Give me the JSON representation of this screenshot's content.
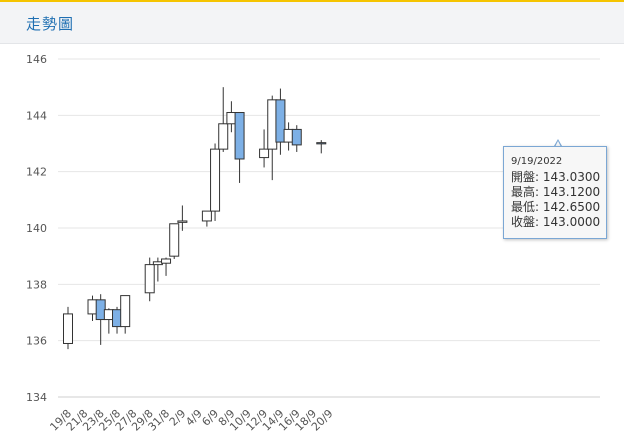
{
  "header": {
    "title": "走勢圖"
  },
  "colors": {
    "up": "#ffffff",
    "down": "#7db0e6",
    "outline": "#333333",
    "grid": "#e6e6e6",
    "accent": "#f5c400"
  },
  "chart_data": {
    "type": "candlestick",
    "ylim": [
      134,
      146
    ],
    "yticks": [
      134,
      136,
      138,
      140,
      142,
      144,
      146
    ],
    "grid": true,
    "x_tick_labels": [
      "19/8",
      "21/8",
      "23/8",
      "25/8",
      "27/8",
      "29/8",
      "31/8",
      "2/9",
      "4/9",
      "6/9",
      "8/9",
      "10/9",
      "12/9",
      "14/9",
      "16/9",
      "18/9",
      "20/9"
    ],
    "candles": [
      {
        "date": "19/8",
        "open": 135.9,
        "high": 137.2,
        "low": 135.7,
        "close": 136.95
      },
      {
        "date": "22/8",
        "open": 136.95,
        "high": 137.6,
        "low": 136.7,
        "close": 137.45
      },
      {
        "date": "23/8",
        "open": 137.45,
        "high": 137.65,
        "low": 135.85,
        "close": 136.75
      },
      {
        "date": "24/8",
        "open": 136.75,
        "high": 137.15,
        "low": 136.25,
        "close": 137.1
      },
      {
        "date": "25/8",
        "open": 137.1,
        "high": 137.2,
        "low": 136.25,
        "close": 136.5
      },
      {
        "date": "26/8",
        "open": 136.5,
        "high": 137.6,
        "low": 136.25,
        "close": 137.6
      },
      {
        "date": "29/8",
        "open": 137.7,
        "high": 138.95,
        "low": 137.4,
        "close": 138.7
      },
      {
        "date": "30/8",
        "open": 138.7,
        "high": 138.95,
        "low": 138.1,
        "close": 138.8
      },
      {
        "date": "31/8",
        "open": 138.75,
        "high": 138.95,
        "low": 138.3,
        "close": 138.9
      },
      {
        "date": "1/9",
        "open": 139.0,
        "high": 140.15,
        "low": 138.9,
        "close": 140.15
      },
      {
        "date": "2/9",
        "open": 140.2,
        "high": 140.8,
        "low": 139.9,
        "close": 140.25
      },
      {
        "date": "5/9",
        "open": 140.25,
        "high": 140.6,
        "low": 140.05,
        "close": 140.6
      },
      {
        "date": "6/9",
        "open": 140.6,
        "high": 143.0,
        "low": 140.25,
        "close": 142.8
      },
      {
        "date": "7/9",
        "open": 142.8,
        "high": 145.0,
        "low": 142.7,
        "close": 143.7
      },
      {
        "date": "8/9",
        "open": 143.7,
        "high": 144.5,
        "low": 143.4,
        "close": 144.1
      },
      {
        "date": "9/9",
        "open": 144.1,
        "high": 144.1,
        "low": 141.6,
        "close": 142.45
      },
      {
        "date": "12/9",
        "open": 142.5,
        "high": 143.5,
        "low": 142.15,
        "close": 142.8
      },
      {
        "date": "13/9",
        "open": 142.8,
        "high": 144.7,
        "low": 141.7,
        "close": 144.55
      },
      {
        "date": "14/9",
        "open": 144.55,
        "high": 144.95,
        "low": 142.6,
        "close": 143.05
      },
      {
        "date": "15/9",
        "open": 143.05,
        "high": 143.75,
        "low": 142.75,
        "close": 143.5
      },
      {
        "date": "16/9",
        "open": 143.5,
        "high": 143.65,
        "low": 142.7,
        "close": 142.95
      },
      {
        "date": "19/9",
        "open": 143.03,
        "high": 143.12,
        "low": 142.65,
        "close": 143.0
      }
    ]
  },
  "tooltip": {
    "date": "9/19/2022",
    "rows": [
      {
        "label": "開盤",
        "value": "143.0300"
      },
      {
        "label": "最高",
        "value": "143.1200"
      },
      {
        "label": "最低",
        "value": "142.6500"
      },
      {
        "label": "收盤",
        "value": "143.0000"
      }
    ]
  }
}
